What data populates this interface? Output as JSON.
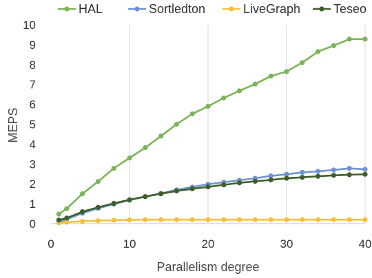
{
  "chart_data": {
    "type": "line",
    "title": "",
    "xlabel": "Parallelism degree",
    "ylabel": "MEPS",
    "xlim": [
      0,
      40
    ],
    "ylim": [
      0,
      10
    ],
    "xticks": [
      0,
      10,
      20,
      30,
      40
    ],
    "yticks": [
      0,
      1,
      2,
      3,
      4,
      5,
      6,
      7,
      8,
      9,
      10
    ],
    "grid": "vertical",
    "legend_position": "top",
    "x": [
      1,
      2,
      4,
      6,
      8,
      10,
      12,
      14,
      16,
      18,
      20,
      22,
      24,
      26,
      28,
      30,
      32,
      34,
      36,
      38,
      40
    ],
    "series": [
      {
        "name": "HAL",
        "color": "#7DB45A",
        "values": [
          0.48,
          0.75,
          1.5,
          2.12,
          2.78,
          3.3,
          3.82,
          4.4,
          5.0,
          5.52,
          5.9,
          6.32,
          6.68,
          7.02,
          7.42,
          7.65,
          8.1,
          8.65,
          8.95,
          9.28,
          9.28
        ]
      },
      {
        "name": "Sortledton",
        "color": "#6E93D1",
        "values": [
          0.08,
          0.22,
          0.52,
          0.77,
          0.98,
          1.18,
          1.36,
          1.52,
          1.7,
          1.84,
          1.98,
          2.08,
          2.18,
          2.28,
          2.4,
          2.48,
          2.58,
          2.63,
          2.7,
          2.78,
          2.73
        ]
      },
      {
        "name": "LiveGraph",
        "color": "#F0C23B",
        "values": [
          0.04,
          0.07,
          0.12,
          0.15,
          0.17,
          0.19,
          0.2,
          0.2,
          0.2,
          0.2,
          0.2,
          0.2,
          0.2,
          0.2,
          0.2,
          0.2,
          0.2,
          0.2,
          0.2,
          0.2,
          0.2
        ]
      },
      {
        "name": "Teseo",
        "color": "#3F5F2A",
        "values": [
          0.18,
          0.28,
          0.6,
          0.82,
          1.02,
          1.2,
          1.36,
          1.5,
          1.64,
          1.75,
          1.85,
          1.95,
          2.05,
          2.13,
          2.2,
          2.28,
          2.33,
          2.38,
          2.43,
          2.46,
          2.48
        ]
      }
    ]
  }
}
